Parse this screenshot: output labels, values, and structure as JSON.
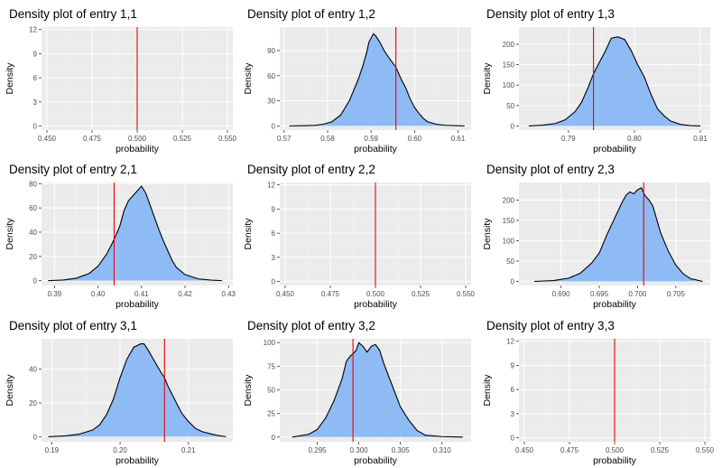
{
  "colors": {
    "panel_bg": "#ebebeb",
    "grid_major": "#ffffff",
    "fill": "#8ab8f5",
    "curve": "#000000",
    "vline": "#e8000b"
  },
  "chart_data": [
    {
      "type": "area",
      "title": "Density plot of entry 1,1",
      "xlabel": "probability",
      "ylabel": "Density",
      "xlim": [
        0.447,
        0.553
      ],
      "ylim": [
        -0.5,
        12.3
      ],
      "xticks": [
        0.45,
        0.475,
        0.5,
        0.525,
        0.55
      ],
      "xtick_labels": [
        "0.450",
        "0.475",
        "0.500",
        "0.525",
        "0.550"
      ],
      "yticks": [
        0,
        3,
        6,
        9,
        12
      ],
      "ytick_labels": [
        "0",
        "3",
        "6",
        "9",
        "12"
      ],
      "vline": 0.5,
      "density": null,
      "grid": true
    },
    {
      "type": "area",
      "title": "Density plot of entry 1,2",
      "xlabel": "probability",
      "ylabel": "Density",
      "xlim": [
        0.569,
        0.613
      ],
      "ylim": [
        -5,
        118
      ],
      "xticks": [
        0.57,
        0.58,
        0.59,
        0.6,
        0.61
      ],
      "xtick_labels": [
        "0.57",
        "0.58",
        "0.59",
        "0.60",
        "0.61"
      ],
      "yticks": [
        0,
        30,
        60,
        90
      ],
      "ytick_labels": [
        "0",
        "30",
        "60",
        "90"
      ],
      "vline": 0.5957,
      "density": [
        [
          0.5712,
          0
        ],
        [
          0.574,
          0.2
        ],
        [
          0.577,
          0.6
        ],
        [
          0.579,
          2
        ],
        [
          0.581,
          5
        ],
        [
          0.583,
          13
        ],
        [
          0.585,
          30
        ],
        [
          0.587,
          55
        ],
        [
          0.588,
          70
        ],
        [
          0.589,
          88
        ],
        [
          0.5895,
          100
        ],
        [
          0.5905,
          110
        ],
        [
          0.591,
          108
        ],
        [
          0.592,
          100
        ],
        [
          0.593,
          90
        ],
        [
          0.594,
          82
        ],
        [
          0.595,
          75
        ],
        [
          0.5957,
          70
        ],
        [
          0.597,
          55
        ],
        [
          0.598,
          45
        ],
        [
          0.599,
          32
        ],
        [
          0.6,
          22
        ],
        [
          0.601,
          15
        ],
        [
          0.602,
          9
        ],
        [
          0.603,
          5
        ],
        [
          0.605,
          2
        ],
        [
          0.607,
          0.8
        ],
        [
          0.61,
          0.2
        ],
        [
          0.6115,
          0
        ]
      ],
      "grid": true
    },
    {
      "type": "area",
      "title": "Density plot of entry 1,3",
      "xlabel": "probability",
      "ylabel": "Density",
      "xlim": [
        0.7825,
        0.8115
      ],
      "ylim": [
        -10,
        242
      ],
      "xticks": [
        0.79,
        0.8,
        0.81
      ],
      "xtick_labels": [
        "0.79",
        "0.80",
        "0.81"
      ],
      "yticks": [
        0,
        50,
        100,
        150,
        200
      ],
      "ytick_labels": [
        "0",
        "50",
        "100",
        "150",
        "200"
      ],
      "vline": 0.7938,
      "density": [
        [
          0.784,
          0
        ],
        [
          0.786,
          2
        ],
        [
          0.788,
          6
        ],
        [
          0.7895,
          15
        ],
        [
          0.791,
          35
        ],
        [
          0.792,
          58
        ],
        [
          0.793,
          95
        ],
        [
          0.7938,
          128
        ],
        [
          0.7945,
          150
        ],
        [
          0.7955,
          180
        ],
        [
          0.7965,
          215
        ],
        [
          0.7975,
          218
        ],
        [
          0.7985,
          212
        ],
        [
          0.7995,
          185
        ],
        [
          0.8005,
          150
        ],
        [
          0.8015,
          120
        ],
        [
          0.8025,
          78
        ],
        [
          0.8035,
          42
        ],
        [
          0.8045,
          25
        ],
        [
          0.8055,
          12
        ],
        [
          0.807,
          4
        ],
        [
          0.8085,
          1
        ],
        [
          0.81,
          0
        ]
      ],
      "grid": true
    },
    {
      "type": "area",
      "title": "Density plot of entry 2,1",
      "xlabel": "probability",
      "ylabel": "Density",
      "xlim": [
        0.387,
        0.431
      ],
      "ylim": [
        -4,
        81
      ],
      "xticks": [
        0.39,
        0.4,
        0.41,
        0.42,
        0.43
      ],
      "xtick_labels": [
        "0.39",
        "0.40",
        "0.41",
        "0.42",
        "0.43"
      ],
      "yticks": [
        0,
        20,
        40,
        60,
        80
      ],
      "ytick_labels": [
        "0",
        "20",
        "40",
        "60",
        "80"
      ],
      "vline": 0.4037,
      "density": [
        [
          0.3885,
          0
        ],
        [
          0.392,
          0.5
        ],
        [
          0.395,
          2
        ],
        [
          0.398,
          6
        ],
        [
          0.4,
          12
        ],
        [
          0.402,
          22
        ],
        [
          0.4037,
          34
        ],
        [
          0.405,
          45
        ],
        [
          0.406,
          58
        ],
        [
          0.407,
          66
        ],
        [
          0.408,
          70
        ],
        [
          0.409,
          74
        ],
        [
          0.41,
          78
        ],
        [
          0.411,
          72
        ],
        [
          0.412,
          62
        ],
        [
          0.413,
          52
        ],
        [
          0.414,
          42
        ],
        [
          0.415,
          33
        ],
        [
          0.416,
          25
        ],
        [
          0.417,
          17
        ],
        [
          0.418,
          11
        ],
        [
          0.42,
          5
        ],
        [
          0.423,
          1.5
        ],
        [
          0.426,
          0.4
        ],
        [
          0.4285,
          0
        ]
      ],
      "grid": true
    },
    {
      "type": "area",
      "title": "Density plot of entry 2,2",
      "xlabel": "probability",
      "ylabel": "Density",
      "xlim": [
        0.447,
        0.553
      ],
      "ylim": [
        -0.5,
        12.3
      ],
      "xticks": [
        0.45,
        0.475,
        0.5,
        0.525,
        0.55
      ],
      "xtick_labels": [
        "0.450",
        "0.475",
        "0.500",
        "0.525",
        "0.550"
      ],
      "yticks": [
        0,
        3,
        6,
        9,
        12
      ],
      "ytick_labels": [
        "0",
        "3",
        "6",
        "9",
        "12"
      ],
      "vline": 0.5,
      "density": null,
      "grid": true
    },
    {
      "type": "area",
      "title": "Density plot of entry 2,3",
      "xlabel": "probability",
      "ylabel": "Density",
      "xlim": [
        0.6845,
        0.7095
      ],
      "ylim": [
        -10,
        243
      ],
      "xticks": [
        0.69,
        0.695,
        0.7,
        0.705
      ],
      "xtick_labels": [
        "0.690",
        "0.695",
        "0.700",
        "0.705"
      ],
      "yticks": [
        0,
        50,
        100,
        150,
        200
      ],
      "ytick_labels": [
        "0",
        "50",
        "100",
        "150",
        "200"
      ],
      "vline": 0.7008,
      "density": [
        [
          0.6865,
          0
        ],
        [
          0.689,
          2
        ],
        [
          0.691,
          8
        ],
        [
          0.6925,
          20
        ],
        [
          0.694,
          45
        ],
        [
          0.695,
          70
        ],
        [
          0.696,
          115
        ],
        [
          0.697,
          155
        ],
        [
          0.698,
          195
        ],
        [
          0.6985,
          212
        ],
        [
          0.699,
          220
        ],
        [
          0.6995,
          215
        ],
        [
          0.7,
          225
        ],
        [
          0.7005,
          230
        ],
        [
          0.701,
          210
        ],
        [
          0.7015,
          200
        ],
        [
          0.702,
          185
        ],
        [
          0.703,
          120
        ],
        [
          0.704,
          75
        ],
        [
          0.705,
          40
        ],
        [
          0.706,
          18
        ],
        [
          0.7065,
          12
        ],
        [
          0.707,
          6
        ],
        [
          0.7075,
          5
        ],
        [
          0.708,
          2
        ],
        [
          0.7085,
          0
        ]
      ],
      "grid": true
    },
    {
      "type": "area",
      "title": "Density plot of entry 3,1",
      "xlabel": "probability",
      "ylabel": "Density",
      "xlim": [
        0.1885,
        0.2165
      ],
      "ylim": [
        -3,
        58
      ],
      "xticks": [
        0.19,
        0.2,
        0.21
      ],
      "xtick_labels": [
        "0.19",
        "0.20",
        "0.21"
      ],
      "yticks": [
        0,
        20,
        40
      ],
      "ytick_labels": [
        "0",
        "20",
        "40"
      ],
      "vline": 0.2065,
      "density": [
        [
          0.1895,
          0
        ],
        [
          0.192,
          0.5
        ],
        [
          0.194,
          1.5
        ],
        [
          0.196,
          4
        ],
        [
          0.197,
          7
        ],
        [
          0.198,
          13
        ],
        [
          0.199,
          22
        ],
        [
          0.2,
          35
        ],
        [
          0.201,
          46
        ],
        [
          0.202,
          53
        ],
        [
          0.203,
          55
        ],
        [
          0.2035,
          55
        ],
        [
          0.204,
          52
        ],
        [
          0.205,
          45
        ],
        [
          0.206,
          38
        ],
        [
          0.2065,
          35
        ],
        [
          0.207,
          30
        ],
        [
          0.208,
          22
        ],
        [
          0.209,
          14
        ],
        [
          0.21,
          9
        ],
        [
          0.211,
          5
        ],
        [
          0.212,
          3
        ],
        [
          0.214,
          1
        ],
        [
          0.2155,
          0
        ]
      ],
      "grid": true
    },
    {
      "type": "area",
      "title": "Density plot of entry 3,2",
      "xlabel": "probability",
      "ylabel": "Density",
      "xlim": [
        0.2905,
        0.3135
      ],
      "ylim": [
        -5,
        104
      ],
      "xticks": [
        0.295,
        0.3,
        0.305,
        0.31
      ],
      "xtick_labels": [
        "0.295",
        "0.300",
        "0.305",
        "0.310"
      ],
      "yticks": [
        0,
        25,
        50,
        75,
        100
      ],
      "ytick_labels": [
        "0",
        "25",
        "50",
        "75",
        "100"
      ],
      "vline": 0.2993,
      "density": [
        [
          0.292,
          0
        ],
        [
          0.294,
          3
        ],
        [
          0.295,
          8
        ],
        [
          0.296,
          20
        ],
        [
          0.297,
          38
        ],
        [
          0.298,
          62
        ],
        [
          0.2985,
          80
        ],
        [
          0.299,
          86
        ],
        [
          0.2993,
          88
        ],
        [
          0.2997,
          92
        ],
        [
          0.3,
          100
        ],
        [
          0.3005,
          96
        ],
        [
          0.301,
          90
        ],
        [
          0.3015,
          96
        ],
        [
          0.302,
          98
        ],
        [
          0.3025,
          92
        ],
        [
          0.303,
          78
        ],
        [
          0.304,
          55
        ],
        [
          0.305,
          32
        ],
        [
          0.306,
          18
        ],
        [
          0.307,
          7
        ],
        [
          0.308,
          2
        ],
        [
          0.31,
          0.5
        ],
        [
          0.3125,
          0
        ]
      ],
      "grid": true
    },
    {
      "type": "area",
      "title": "Density plot of entry 3,3",
      "xlabel": "probability",
      "ylabel": "Density",
      "xlim": [
        0.447,
        0.553
      ],
      "ylim": [
        -0.5,
        12.3
      ],
      "xticks": [
        0.45,
        0.475,
        0.5,
        0.525,
        0.55
      ],
      "xtick_labels": [
        "0.450",
        "0.475",
        "0.500",
        "0.525",
        "0.550"
      ],
      "yticks": [
        0,
        3,
        6,
        9,
        12
      ],
      "ytick_labels": [
        "0",
        "3",
        "6",
        "9",
        "12"
      ],
      "vline": 0.5,
      "density": null,
      "grid": true
    }
  ]
}
